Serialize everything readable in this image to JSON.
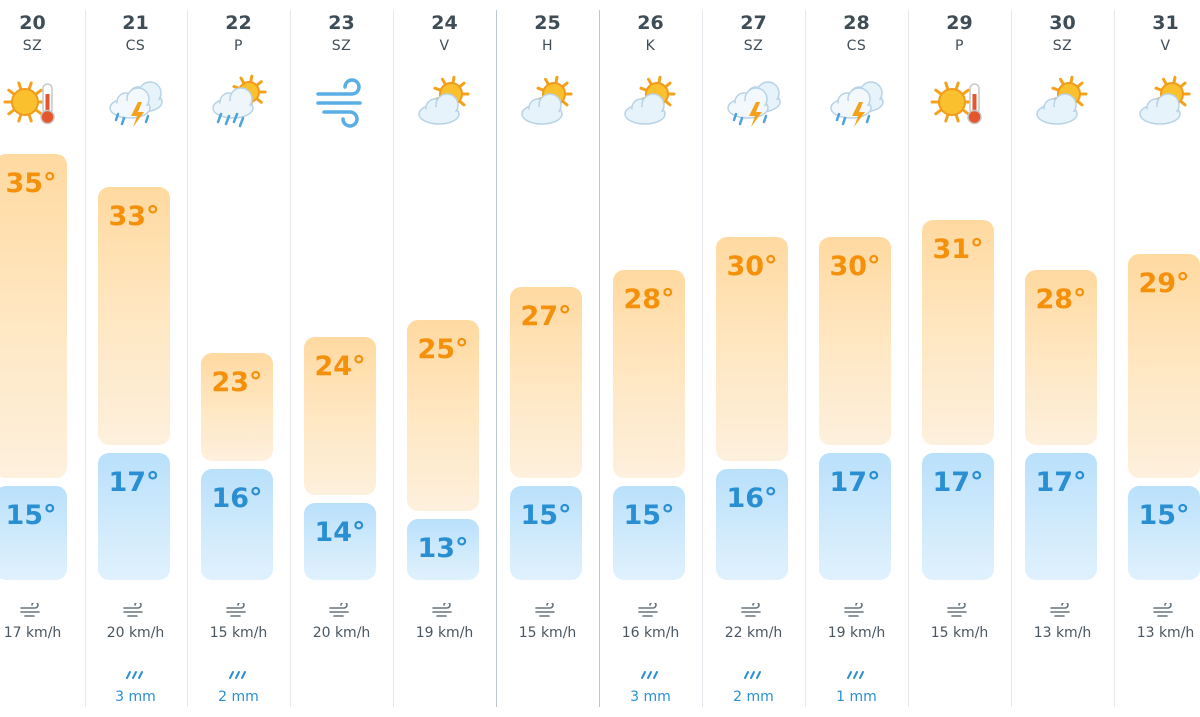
{
  "days": [
    {
      "day": "20",
      "weekday": "SZ",
      "icon": "sun-thermometer-icon",
      "high": 35,
      "low": 15,
      "high_label": "35°",
      "low_label": "15°",
      "wind": "17 km/h",
      "rain": ""
    },
    {
      "day": "21",
      "weekday": "CS",
      "icon": "thunderstorm-rain-icon",
      "high": 33,
      "low": 17,
      "high_label": "33°",
      "low_label": "17°",
      "wind": "20 km/h",
      "rain": "3 mm"
    },
    {
      "day": "22",
      "weekday": "P",
      "icon": "sun-cloud-rain-icon",
      "high": 23,
      "low": 16,
      "high_label": "23°",
      "low_label": "16°",
      "wind": "15 km/h",
      "rain": "2 mm"
    },
    {
      "day": "23",
      "weekday": "SZ",
      "icon": "wind-icon",
      "high": 24,
      "low": 14,
      "high_label": "24°",
      "low_label": "14°",
      "wind": "20 km/h",
      "rain": ""
    },
    {
      "day": "24",
      "weekday": "V",
      "icon": "partly-cloudy-icon",
      "high": 25,
      "low": 13,
      "high_label": "25°",
      "low_label": "13°",
      "wind": "19 km/h",
      "rain": ""
    },
    {
      "day": "25",
      "weekday": "H",
      "icon": "partly-cloudy-icon",
      "high": 27,
      "low": 15,
      "high_label": "27°",
      "low_label": "15°",
      "wind": "15 km/h",
      "rain": ""
    },
    {
      "day": "26",
      "weekday": "K",
      "icon": "partly-cloudy-icon",
      "high": 28,
      "low": 15,
      "high_label": "28°",
      "low_label": "15°",
      "wind": "16 km/h",
      "rain": "3 mm"
    },
    {
      "day": "27",
      "weekday": "SZ",
      "icon": "thunderstorm-rain-icon",
      "high": 30,
      "low": 16,
      "high_label": "30°",
      "low_label": "16°",
      "wind": "22 km/h",
      "rain": "2 mm"
    },
    {
      "day": "28",
      "weekday": "CS",
      "icon": "thunderstorm-rain-icon",
      "high": 30,
      "low": 17,
      "high_label": "30°",
      "low_label": "17°",
      "wind": "19 km/h",
      "rain": "1 mm"
    },
    {
      "day": "29",
      "weekday": "P",
      "icon": "sun-thermometer-icon",
      "high": 31,
      "low": 17,
      "high_label": "31°",
      "low_label": "17°",
      "wind": "15 km/h",
      "rain": ""
    },
    {
      "day": "30",
      "weekday": "SZ",
      "icon": "partly-cloudy-icon",
      "high": 28,
      "low": 17,
      "high_label": "28°",
      "low_label": "17°",
      "wind": "13 km/h",
      "rain": ""
    },
    {
      "day": "31",
      "weekday": "V",
      "icon": "partly-cloudy-icon",
      "high": 29,
      "low": 15,
      "high_label": "29°",
      "low_label": "15°",
      "wind": "13 km/h",
      "rain": ""
    }
  ],
  "colors": {
    "high_text": "#f5900a",
    "low_text": "#2a8fd2",
    "rain_text": "#2a8fd2",
    "text_dark": "#3f4d57"
  }
}
